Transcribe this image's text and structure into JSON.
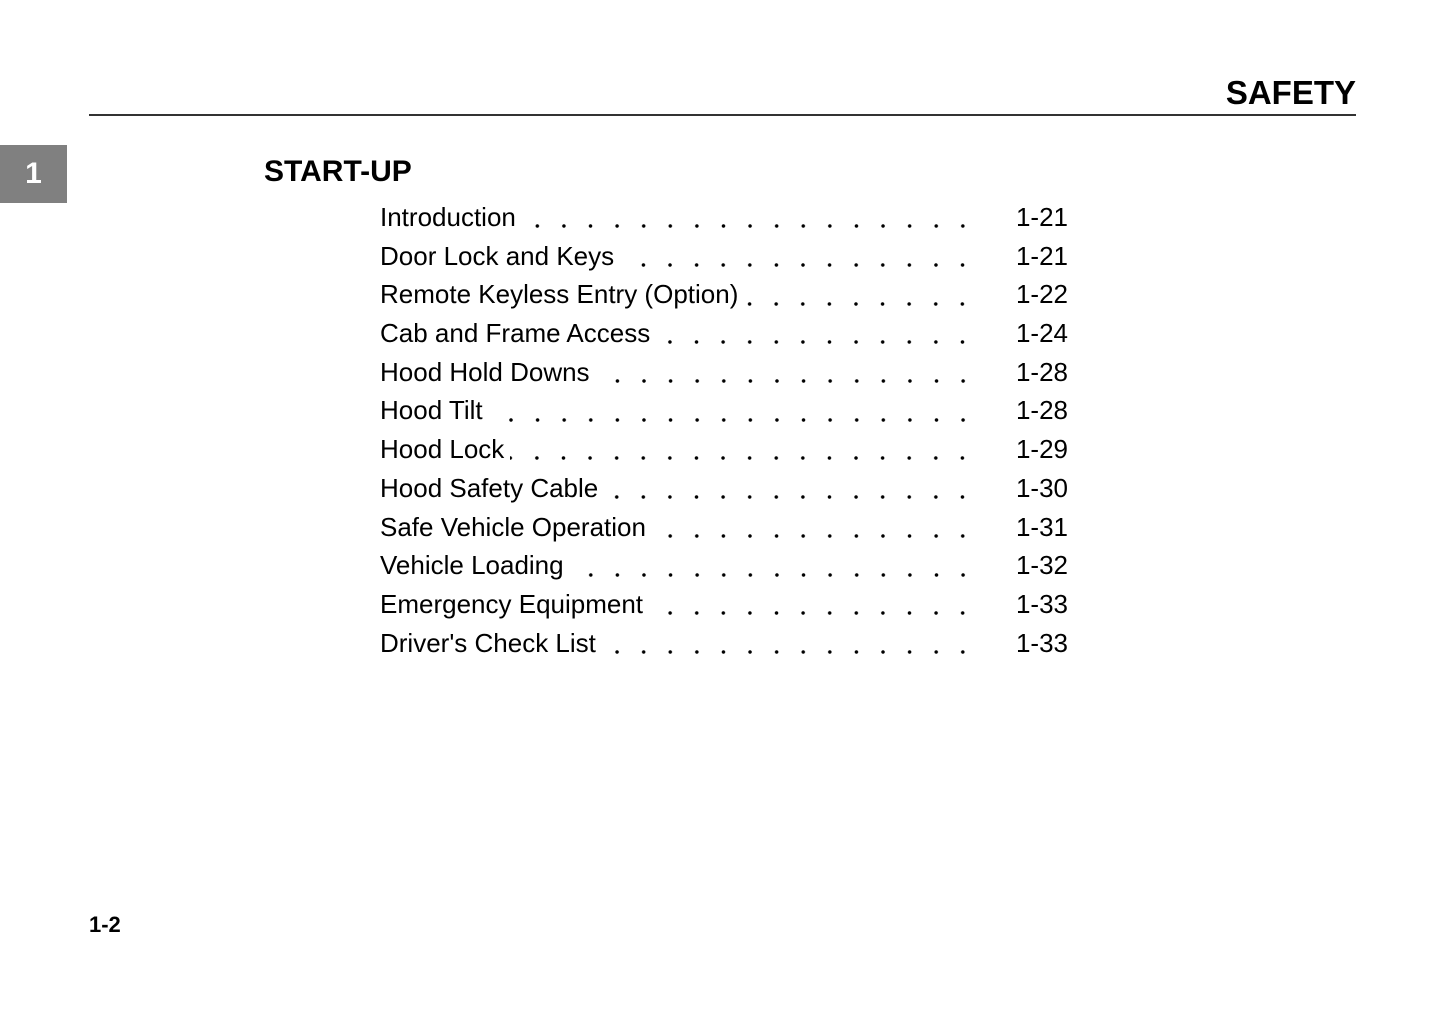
{
  "header": {
    "title": "SAFETY"
  },
  "chapter_tab": "1",
  "section": {
    "title": "START-UP",
    "entries": [
      {
        "label": "Introduction",
        "page": "1-21"
      },
      {
        "label": "Door Lock and Keys",
        "page": "1-21"
      },
      {
        "label": "Remote Keyless Entry (Option)",
        "page": "1-22"
      },
      {
        "label": "Cab and Frame Access",
        "page": "1-24"
      },
      {
        "label": "Hood Hold Downs",
        "page": "1-28"
      },
      {
        "label": "Hood Tilt",
        "page": "1-28"
      },
      {
        "label": "Hood Lock",
        "page": "1-29"
      },
      {
        "label": "Hood Safety Cable",
        "page": "1-30"
      },
      {
        "label": "Safe Vehicle Operation",
        "page": "1-31"
      },
      {
        "label": "Vehicle Loading",
        "page": "1-32"
      },
      {
        "label": "Emergency Equipment",
        "page": "1-33"
      },
      {
        "label": "Driver's Check List",
        "page": "1-33"
      }
    ]
  },
  "footer": {
    "page_number": "1-2"
  }
}
